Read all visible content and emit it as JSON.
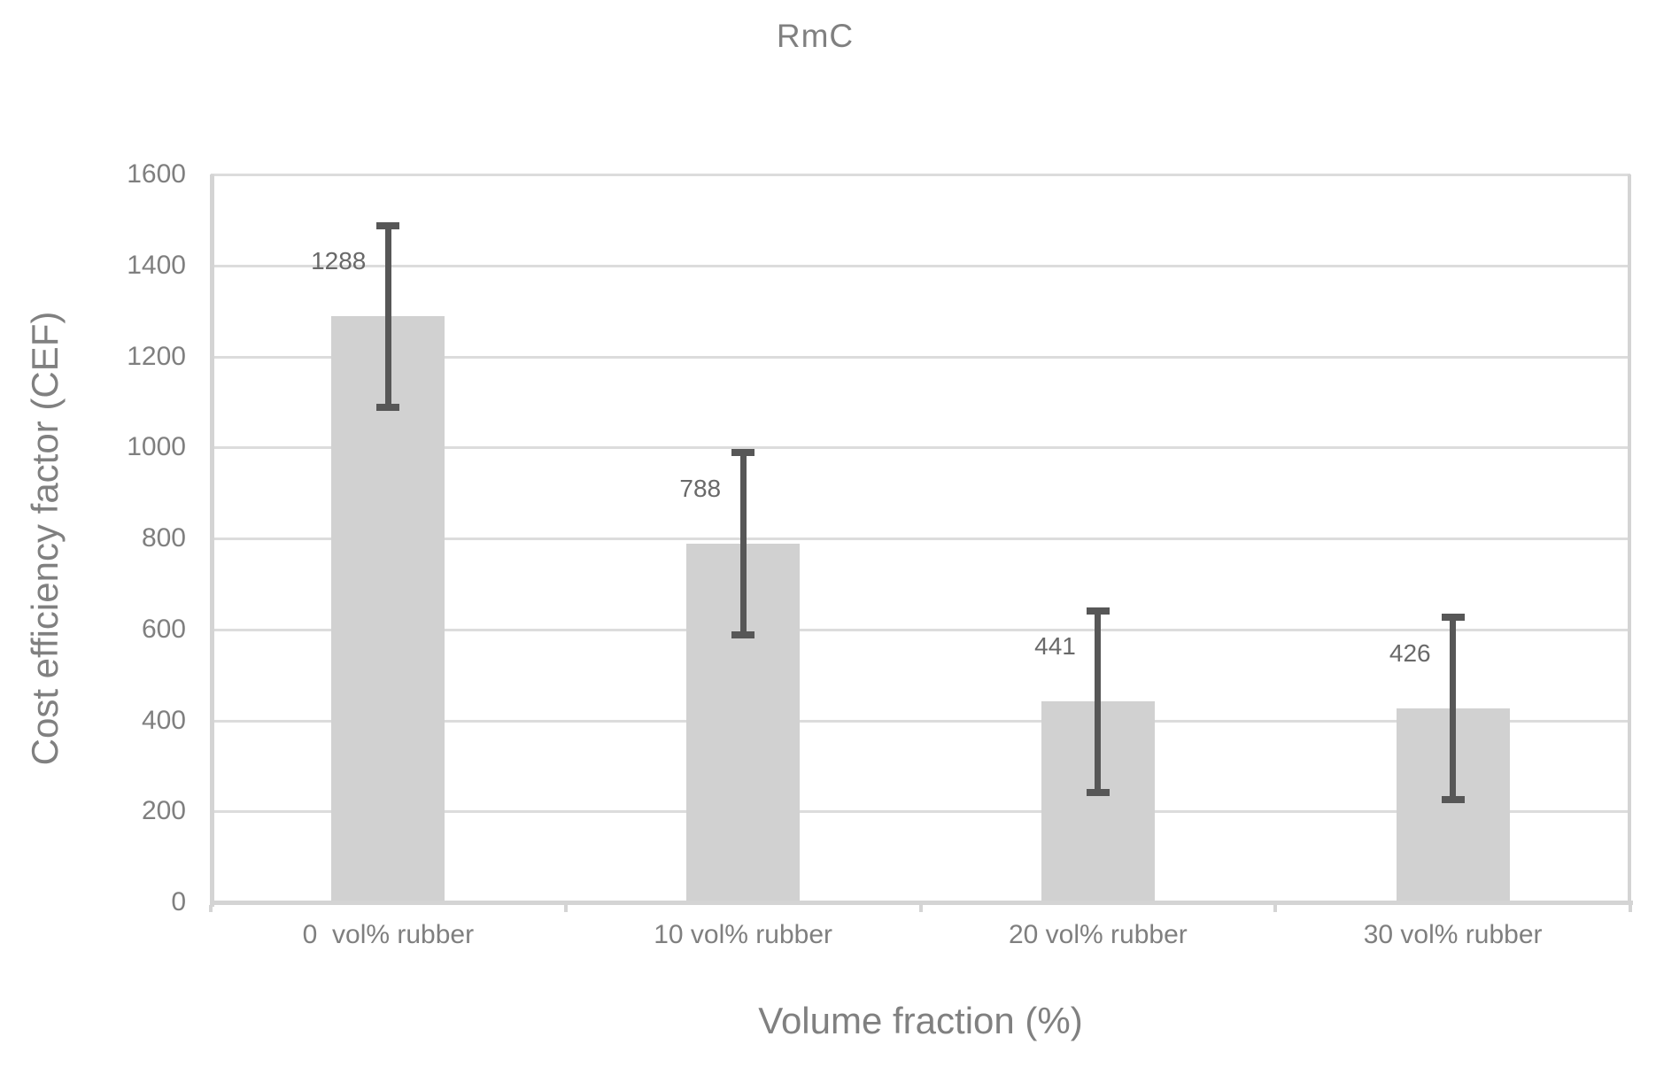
{
  "chart_data": {
    "type": "bar",
    "title": "RmC",
    "xlabel": "Volume fraction (%)",
    "ylabel": "Cost efficiency factor (CEF)",
    "categories": [
      "0  vol% rubber",
      "10 vol% rubber",
      "20 vol% rubber",
      "30 vol% rubber"
    ],
    "values": [
      1288,
      788,
      441,
      426
    ],
    "data_labels": [
      "1288",
      "788",
      "441",
      "426"
    ],
    "error_bars": {
      "type": "symmetric",
      "plus_minus": 200
    },
    "ylim": [
      0,
      1600
    ],
    "ytick_step": 200,
    "yticks": [
      1600,
      1400,
      1200,
      1000,
      800,
      600,
      400,
      200,
      0
    ],
    "grid": "horizontal-major",
    "legend": "none",
    "colors": {
      "background": "#ffffff",
      "bar_fill": "#d1d1d1",
      "gridline": "#dcdcdc",
      "axis_line": "#d4d4d4",
      "error_bar": "#575757",
      "tick_label_text": "#7f7f7f",
      "title_text": "#808080",
      "axis_title_text": "#808080",
      "data_label_text": "#696969"
    }
  }
}
